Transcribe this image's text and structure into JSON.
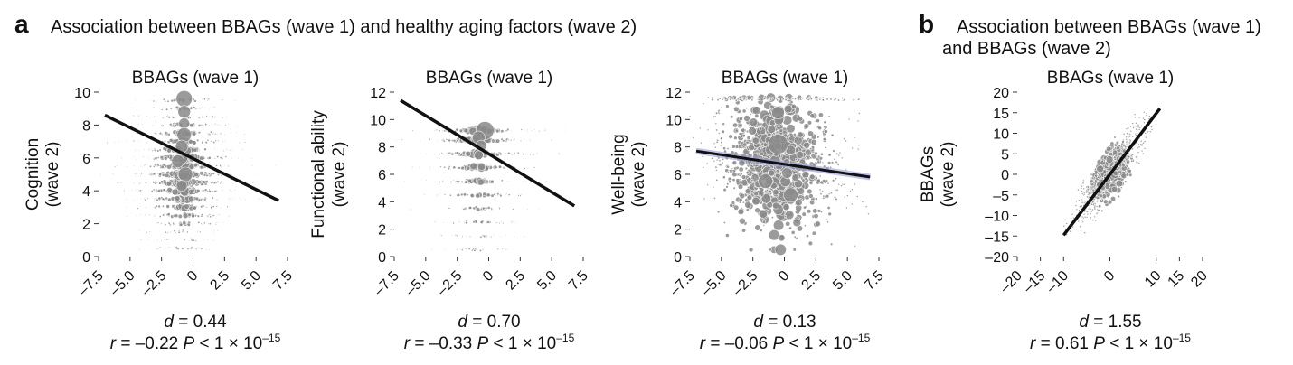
{
  "panel_a": {
    "letter": "a",
    "heading": "Association between BBAGs (wave 1) and healthy aging factors (wave 2)"
  },
  "panel_b": {
    "letter": "b",
    "heading_line1": "Association between BBAGs (wave 1)",
    "heading_line2": "and BBAGs (wave 2)"
  },
  "chart_data": [
    {
      "type": "scatter",
      "title": "BBAGs (wave 1)",
      "ylabel_line1": "Cognition",
      "ylabel_line2": "(wave 2)",
      "xlim": [
        -7.5,
        7.5
      ],
      "ylim": [
        0,
        10
      ],
      "xticks": [
        "–7.5",
        "–5.0",
        "–2.5",
        "0",
        "2.5",
        "5.0",
        "7.5"
      ],
      "yticks": [
        "0",
        "2",
        "4",
        "6",
        "8",
        "10"
      ],
      "regression_line": {
        "x": [
          -7.0,
          6.8
        ],
        "y": [
          8.6,
          3.4
        ]
      },
      "cloud": {
        "x_center": -0.8,
        "x_spread": 2.2,
        "y_levels": [
          0.5,
          1,
          1.5,
          2,
          2.5,
          3,
          3.5,
          4,
          4.5,
          5,
          5.5,
          6,
          6.5,
          7,
          7.5,
          8,
          8.5,
          9,
          9.5
        ],
        "y_weights": [
          1,
          1,
          1,
          2,
          3,
          4,
          5,
          6,
          7,
          7,
          6,
          6,
          5,
          4,
          4,
          3,
          2,
          2,
          2
        ]
      },
      "stats": {
        "d_label": "d",
        "d_value": " = 0.44",
        "r_label": "r",
        "r_text": " = –0.22 ",
        "p_label": "P",
        "p_text": " < 1 × 10",
        "p_exp": "–15"
      }
    },
    {
      "type": "scatter",
      "title": "BBAGs (wave 1)",
      "ylabel_line1": "Functional ability",
      "ylabel_line2": "(wave 2)",
      "xlim": [
        -7.5,
        7.5
      ],
      "ylim": [
        0,
        12
      ],
      "xticks": [
        "–7.5",
        "–5.0",
        "–2.5",
        "0",
        "2.5",
        "5.0",
        "7.5"
      ],
      "yticks": [
        "0",
        "2",
        "4",
        "6",
        "8",
        "10",
        "12"
      ],
      "regression_line": {
        "x": [
          -7.0,
          6.8
        ],
        "y": [
          11.4,
          3.7
        ]
      },
      "cloud": {
        "x_center": -0.8,
        "x_spread": 2.2,
        "y_levels": [
          0.5,
          1.5,
          2.5,
          3.5,
          4.5,
          5.5,
          6.5,
          7.5,
          8.5,
          9.2
        ],
        "y_weights": [
          1,
          1,
          2,
          2,
          3,
          4,
          5,
          6,
          7,
          6
        ]
      },
      "stats": {
        "d_label": "d",
        "d_value": " = 0.70",
        "r_label": "r",
        "r_text": " = –0.33 ",
        "p_label": "P",
        "p_text": " < 1 × 10",
        "p_exp": "–15"
      }
    },
    {
      "type": "scatter",
      "title": "BBAGs (wave 1)",
      "ylabel_line1": "Well-being",
      "ylabel_line2": "(wave 2)",
      "xlim": [
        -7.5,
        7.5
      ],
      "ylim": [
        0,
        12
      ],
      "xticks": [
        "–7.5",
        "–5.0",
        "–2.5",
        "0",
        "2.5",
        "5.0",
        "7.5"
      ],
      "yticks": [
        "0",
        "2",
        "4",
        "6",
        "8",
        "10",
        "12"
      ],
      "regression_line": {
        "x": [
          -7.0,
          6.8
        ],
        "y": [
          7.7,
          5.8
        ]
      },
      "cloud": {
        "x_center": -0.6,
        "x_spread": 2.6,
        "y_levels": [],
        "y_weights": []
      },
      "stats": {
        "d_label": "d",
        "d_value": " = 0.13",
        "r_label": "r",
        "r_text": " = –0.06 ",
        "p_label": "P",
        "p_text": " < 1 × 10",
        "p_exp": "–15"
      }
    },
    {
      "type": "scatter",
      "title": "BBAGs (wave 1)",
      "ylabel_line1": "BBAGs",
      "ylabel_line2": "(wave 2)",
      "xlim": [
        -20,
        20
      ],
      "ylim": [
        -20,
        20
      ],
      "xticks": [
        "–20",
        "–15",
        "–10",
        "0",
        "10",
        "15",
        "20"
      ],
      "xtick_values": [
        -20,
        -15,
        -10,
        0,
        10,
        15,
        20
      ],
      "yticks": [
        "–20",
        "–15",
        "–10",
        "–5",
        "0",
        "5",
        "10",
        "15",
        "20"
      ],
      "regression_line": {
        "x": [
          -10,
          10.8
        ],
        "y": [
          -14.8,
          16
        ]
      },
      "cloud": {
        "x_center": 0,
        "x_spread": 4,
        "y_levels": [],
        "y_weights": []
      },
      "stats": {
        "d_label": "d",
        "d_value": " = 1.55",
        "r_label": "r",
        "r_text": " = 0.61 ",
        "p_label": "P",
        "p_text": " < 1 × 10",
        "p_exp": "–15"
      }
    }
  ],
  "colors": {
    "points": "#8a8a8a",
    "line": "#111111",
    "ci_band": "#9aa0d8"
  }
}
